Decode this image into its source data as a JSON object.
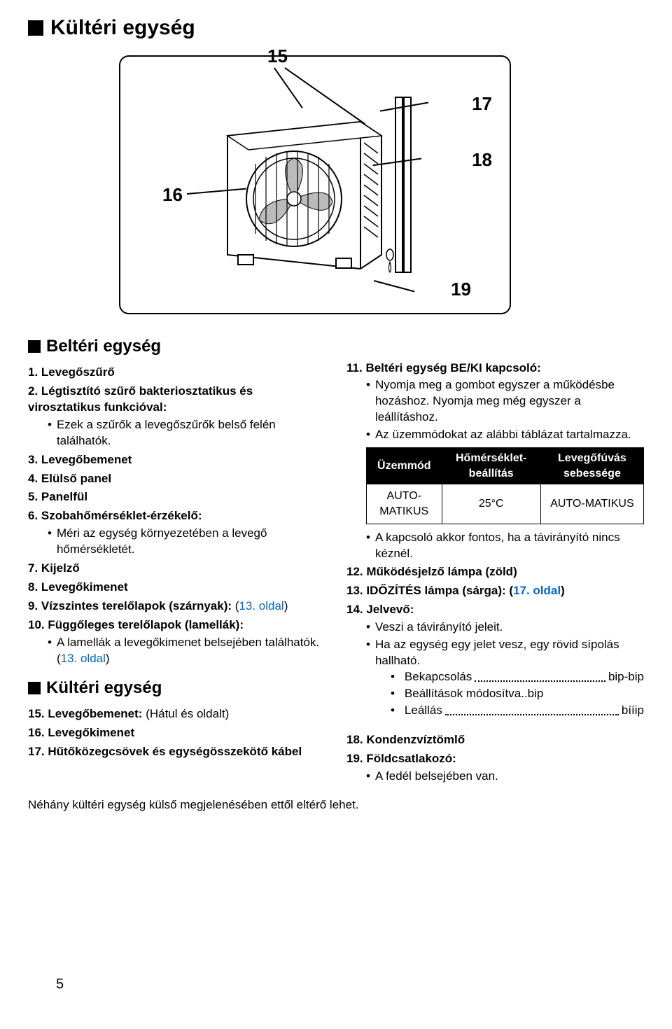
{
  "title_outdoor": "Kültéri egység",
  "diagram": {
    "labels": {
      "n15": "15",
      "n16": "16",
      "n17": "17",
      "n18": "18",
      "n19": "19"
    }
  },
  "section_indoor": "Beltéri egység",
  "section_outdoor": "Kültéri egység",
  "left": {
    "i1": {
      "num": "1.",
      "title": "Levegőszűrő"
    },
    "i2": {
      "num": "2.",
      "title": "Légtisztító szűrő bakteriosztatikus és virosztatikus funkcióval:",
      "sub": [
        "Ezek a szűrők a levegőszűrők belső felén találhatók."
      ]
    },
    "i3": {
      "num": "3.",
      "title": "Levegőbemenet"
    },
    "i4": {
      "num": "4.",
      "title": "Elülső panel"
    },
    "i5": {
      "num": "5.",
      "title": "Panelfül"
    },
    "i6": {
      "num": "6.",
      "title": "Szobahőmérséklet-érzékelő:",
      "sub": [
        "Méri az egység környezetében a levegő hőmérsékletét."
      ]
    },
    "i7": {
      "num": "7.",
      "title": "Kijelző"
    },
    "i8": {
      "num": "8.",
      "title": "Levegőkimenet"
    },
    "i9": {
      "num": "9.",
      "title": "Vízszintes terelőlapok (szárnyak):",
      "ref_open": "(",
      "ref_link": "13. oldal",
      "ref_close": ")"
    },
    "i10": {
      "num": "10.",
      "title": "Függőleges terelőlapok (lamellák):",
      "sub_pre": "A lamellák a levegőkimenet belsejében találhatók. (",
      "sub_link": "13. oldal",
      "sub_post": ")"
    },
    "i15": {
      "num": "15.",
      "title": "Levegőbemenet:",
      "tail": " (Hátul és oldalt)"
    },
    "i16": {
      "num": "16.",
      "title": "Levegőkimenet"
    },
    "i17": {
      "num": "17.",
      "title": "Hűtőközegcsövek és egységösszekötő kábel"
    }
  },
  "right": {
    "i11": {
      "num": "11.",
      "title": "Beltéri egység BE/KI kapcsoló:",
      "sub1": "Nyomja meg a gombot egyszer a működésbe hozáshoz. Nyomja meg még egyszer a leállításhoz.",
      "sub2": "Az üzemmódokat az alábbi táblázat tartalmazza.",
      "sub3": "A kapcsoló akkor fontos, ha a távirányító nincs kéznél."
    },
    "table": {
      "h1": "Üzemmód",
      "h2": "Hőmérséklet-beállítás",
      "h3": "Levegőfúvás sebessége",
      "r1c1": "AUTO-MATIKUS",
      "r1c2": "25°C",
      "r1c3": "AUTO-MATIKUS"
    },
    "i12": {
      "num": "12.",
      "title": "Működésjelző lámpa (zöld)"
    },
    "i13": {
      "num": "13.",
      "title_pre": "IDŐZÍTÉS lámpa (sárga): (",
      "title_link": "17. oldal",
      "title_post": ")"
    },
    "i14": {
      "num": "14.",
      "title": "Jelvevő:",
      "sub1": "Veszi a távirányító jeleit.",
      "sub2": "Ha az egység egy jelet vesz, egy rövid sípolás hallható.",
      "beeps": [
        {
          "label": "Bekapcsolás",
          "val": "bip-bip"
        },
        {
          "label": "Beállítások módosítva",
          "val": "bip",
          "nodots": true
        },
        {
          "label": "Leállás",
          "val": "bííip"
        }
      ]
    },
    "i18": {
      "num": "18.",
      "title": "Kondenzvíztömlő"
    },
    "i19": {
      "num": "19.",
      "title": "Földcsatlakozó:",
      "sub": [
        "A fedél belsejében van."
      ]
    }
  },
  "footnote": "Néhány kültéri egység külső megjelenésében ettől eltérő lehet.",
  "page": "5"
}
